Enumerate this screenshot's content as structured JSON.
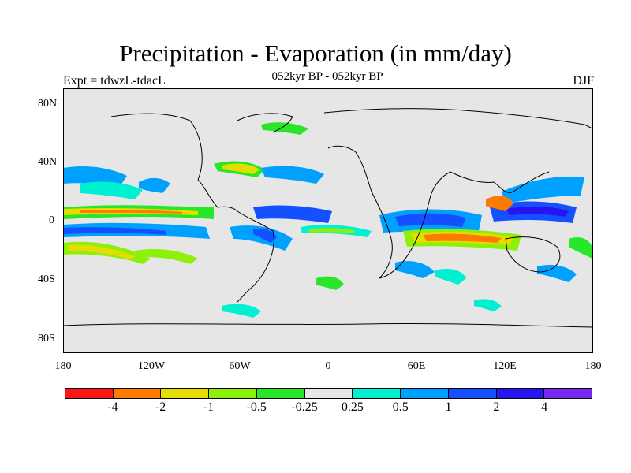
{
  "title": "Precipitation - Evaporation (in mm/day)",
  "subtitle": "052kyr BP - 052kyr BP",
  "left_label": "Expt = tdwzL-tdacL",
  "right_label": "DJF",
  "lat_ticks": [
    "80N",
    "40N",
    "0",
    "40S",
    "80S"
  ],
  "lon_ticks": [
    "180",
    "120W",
    "60W",
    "0",
    "60E",
    "120E",
    "180"
  ],
  "colorbar": {
    "colors": [
      "#ff1414",
      "#ff7a00",
      "#e5dc00",
      "#8cf00a",
      "#28e628",
      "#e6e6e6",
      "#00f0d2",
      "#00a0ff",
      "#1450ff",
      "#2814f0",
      "#7828f0"
    ],
    "labels": [
      "-4",
      "-2",
      "-1",
      "-0.5",
      "-0.25",
      "0.25",
      "0.5",
      "1",
      "2",
      "4"
    ]
  }
}
